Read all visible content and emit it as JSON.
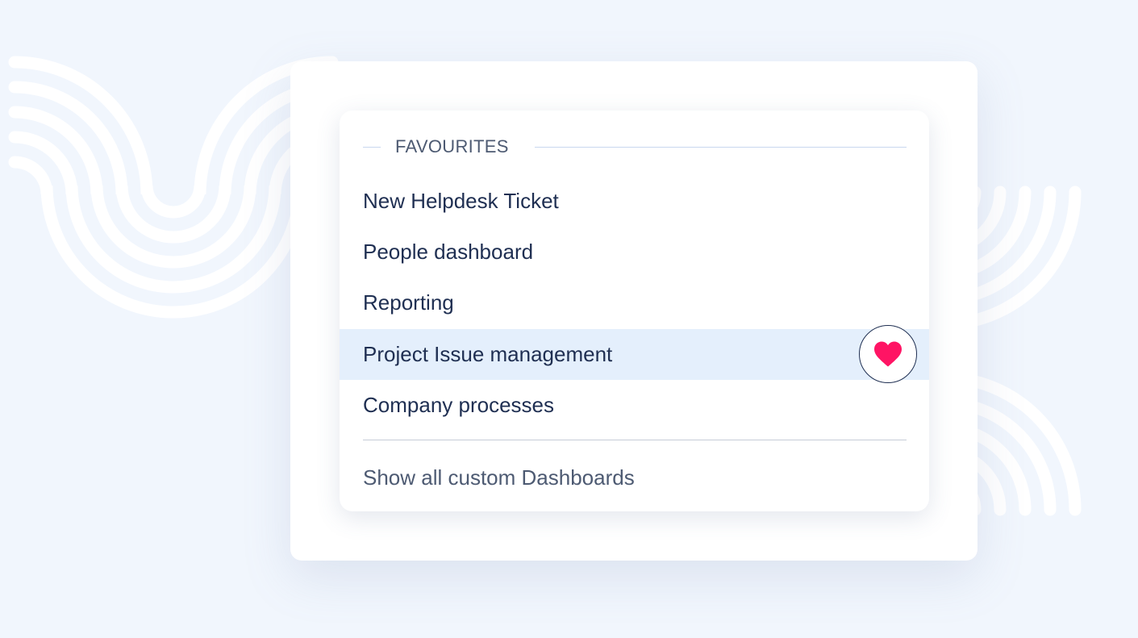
{
  "menu": {
    "section_title": "FAVOURITES",
    "items": [
      {
        "label": "New Helpdesk Ticket"
      },
      {
        "label": "People dashboard"
      },
      {
        "label": "Reporting"
      },
      {
        "label": "Project Issue management",
        "highlighted": true,
        "favourite": true
      },
      {
        "label": "Company processes"
      }
    ],
    "show_all_label": "Show all custom Dashboards"
  },
  "icons": {
    "favourite": "heart-icon"
  },
  "colors": {
    "heart": "#ff1464",
    "highlight": "#e4effc",
    "text": "#1f2f52",
    "background": "#f1f6fd"
  }
}
